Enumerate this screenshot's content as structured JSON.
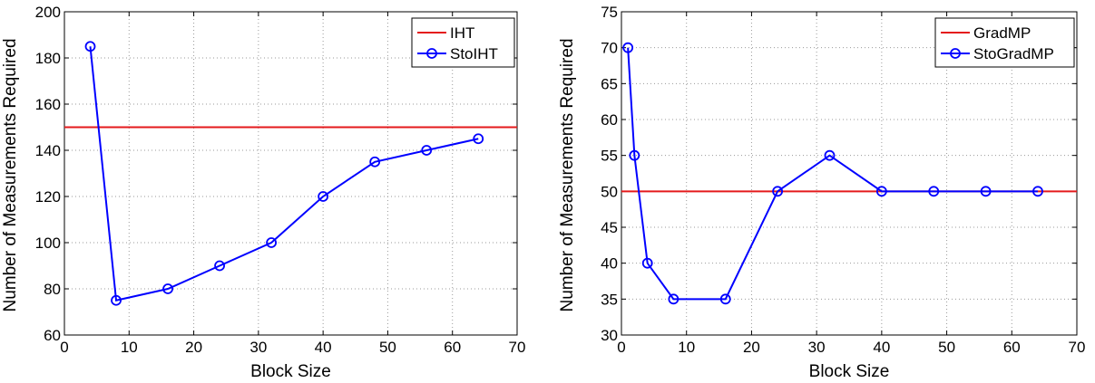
{
  "chart_data": [
    {
      "type": "line",
      "xlabel": "Block Size",
      "ylabel": "Number of Measurements Required",
      "xlim": [
        0,
        70
      ],
      "ylim": [
        60,
        200
      ],
      "xticks": [
        0,
        10,
        20,
        30,
        40,
        50,
        60,
        70
      ],
      "yticks": [
        60,
        80,
        100,
        120,
        140,
        160,
        180,
        200
      ],
      "grid": true,
      "legend_position": "top-right",
      "colors": {
        "reference": "#e41a1c",
        "stochastic": "#0000ff"
      },
      "series": [
        {
          "name": "IHT",
          "kind": "hline",
          "y": 150,
          "marker": "none"
        },
        {
          "name": "StoIHT",
          "kind": "line",
          "marker": "circle",
          "x": [
            4,
            8,
            16,
            24,
            32,
            40,
            48,
            56,
            64
          ],
          "y": [
            185,
            75,
            80,
            90,
            100,
            120,
            135,
            140,
            145
          ]
        }
      ]
    },
    {
      "type": "line",
      "xlabel": "Block Size",
      "ylabel": "Number of Measurements Required",
      "xlim": [
        0,
        70
      ],
      "ylim": [
        30,
        75
      ],
      "xticks": [
        0,
        10,
        20,
        30,
        40,
        50,
        60,
        70
      ],
      "yticks": [
        30,
        35,
        40,
        45,
        50,
        55,
        60,
        65,
        70,
        75
      ],
      "grid": true,
      "legend_position": "top-right",
      "colors": {
        "reference": "#e41a1c",
        "stochastic": "#0000ff"
      },
      "series": [
        {
          "name": "GradMP",
          "kind": "hline",
          "y": 50,
          "marker": "none"
        },
        {
          "name": "StoGradMP",
          "kind": "line",
          "marker": "circle",
          "x": [
            1,
            2,
            4,
            8,
            16,
            24,
            32,
            40,
            48,
            56,
            64
          ],
          "y": [
            70,
            55,
            40,
            35,
            35,
            50,
            55,
            50,
            50,
            50,
            50
          ]
        }
      ]
    }
  ]
}
